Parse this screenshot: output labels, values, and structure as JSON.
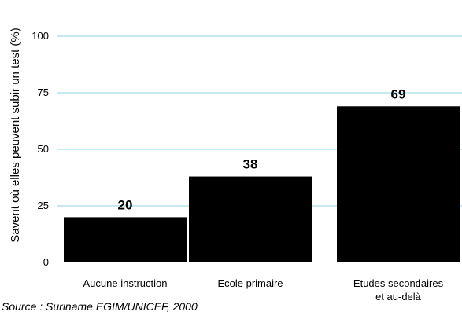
{
  "chart_data": {
    "type": "bar",
    "ylabel": "Savent où elles peuvent subir un test (%)",
    "ylim": [
      0,
      100
    ],
    "yticks": [
      0,
      25,
      50,
      75,
      100
    ],
    "grid": true,
    "categories": [
      [
        "Aucune instruction"
      ],
      [
        "Ecole primaire"
      ],
      [
        "Etudes secondaires",
        "et au-delà"
      ]
    ],
    "values": [
      20,
      38,
      69
    ],
    "value_labels": [
      "20",
      "38",
      "69"
    ],
    "colors": {
      "bar": "#000000",
      "grid": "#8fd3e6"
    }
  },
  "source": "Source : Suriname EGIM/UNICEF, 2000"
}
